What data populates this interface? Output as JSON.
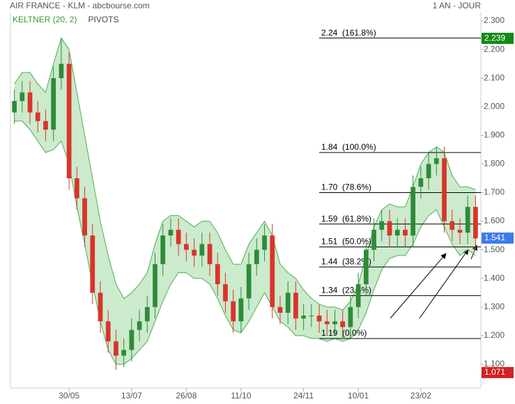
{
  "chart_data": {
    "type": "candlestick",
    "title": "AIR FRANCE - KLM - abcbourse.com",
    "period": "1 AN - JOUR",
    "indicators": [
      {
        "name": "KELTNER (20, 2)",
        "color": "#3a9a3a"
      },
      {
        "name": "PIVOTS",
        "color": "#444444"
      }
    ],
    "categories": [
      null,
      null,
      null,
      null,
      null,
      null,
      null,
      "30/05",
      null,
      null,
      null,
      null,
      null,
      null,
      null,
      "13/07",
      null,
      null,
      null,
      null,
      null,
      null,
      "26/08",
      null,
      null,
      null,
      null,
      null,
      null,
      "11/10",
      null,
      null,
      null,
      null,
      null,
      null,
      null,
      "24/11",
      null,
      null,
      null,
      null,
      null,
      null,
      "10/01",
      null,
      null,
      null,
      null,
      null,
      null,
      null,
      "23/02",
      null,
      null,
      null,
      null,
      null,
      null,
      null
    ],
    "open": [
      1.98,
      2.02,
      2.05,
      1.98,
      1.95,
      1.92,
      2.1,
      2.15,
      1.75,
      1.68,
      1.55,
      1.35,
      1.25,
      1.18,
      1.13,
      1.15,
      1.22,
      1.25,
      1.3,
      1.45,
      1.55,
      1.57,
      1.52,
      1.5,
      1.48,
      1.52,
      1.45,
      1.38,
      1.32,
      1.25,
      1.33,
      1.45,
      1.5,
      1.55,
      1.3,
      1.28,
      1.35,
      1.26,
      1.27,
      1.27,
      1.25,
      1.24,
      1.25,
      1.23,
      1.3,
      1.38,
      1.5,
      1.57,
      1.6,
      1.55,
      1.57,
      1.55,
      1.72,
      1.75,
      1.8,
      1.82,
      1.6,
      1.57,
      1.56,
      1.65
    ],
    "high": [
      2.06,
      2.09,
      2.09,
      2.02,
      1.99,
      2.14,
      2.24,
      2.19,
      1.79,
      1.72,
      1.59,
      1.39,
      1.29,
      1.22,
      1.19,
      1.26,
      1.29,
      1.34,
      1.49,
      1.59,
      1.61,
      1.61,
      1.56,
      1.54,
      1.56,
      1.56,
      1.49,
      1.42,
      1.36,
      1.37,
      1.49,
      1.54,
      1.59,
      1.59,
      1.34,
      1.39,
      1.39,
      1.31,
      1.31,
      1.31,
      1.29,
      1.29,
      1.29,
      1.34,
      1.42,
      1.54,
      1.61,
      1.64,
      1.64,
      1.61,
      1.61,
      1.76,
      1.79,
      1.84,
      1.86,
      1.86,
      1.64,
      1.61,
      1.69,
      1.69
    ],
    "low": [
      1.94,
      1.98,
      1.94,
      1.91,
      1.88,
      1.88,
      2.06,
      1.71,
      1.64,
      1.51,
      1.31,
      1.21,
      1.14,
      1.08,
      1.09,
      1.11,
      1.18,
      1.21,
      1.26,
      1.41,
      1.51,
      1.48,
      1.46,
      1.44,
      1.44,
      1.41,
      1.34,
      1.28,
      1.21,
      1.21,
      1.29,
      1.41,
      1.46,
      1.26,
      1.24,
      1.24,
      1.22,
      1.22,
      1.23,
      1.21,
      1.2,
      1.2,
      1.19,
      1.19,
      1.26,
      1.34,
      1.46,
      1.53,
      1.51,
      1.51,
      1.51,
      1.51,
      1.68,
      1.71,
      1.76,
      1.56,
      1.53,
      1.52,
      1.52,
      1.5
    ],
    "close": [
      2.02,
      2.05,
      1.98,
      1.95,
      1.92,
      2.1,
      2.15,
      1.75,
      1.68,
      1.55,
      1.35,
      1.25,
      1.18,
      1.13,
      1.15,
      1.22,
      1.25,
      1.3,
      1.45,
      1.55,
      1.57,
      1.52,
      1.5,
      1.48,
      1.52,
      1.45,
      1.38,
      1.32,
      1.25,
      1.33,
      1.45,
      1.5,
      1.55,
      1.3,
      1.28,
      1.35,
      1.26,
      1.27,
      1.27,
      1.25,
      1.24,
      1.25,
      1.23,
      1.3,
      1.38,
      1.5,
      1.57,
      1.6,
      1.55,
      1.57,
      1.55,
      1.72,
      1.75,
      1.8,
      1.82,
      1.6,
      1.57,
      1.56,
      1.65,
      1.54
    ],
    "up_color": "#2e8b3a",
    "down_color": "#d9342b",
    "keltner_upper": [
      2.08,
      2.12,
      2.12,
      2.08,
      2.05,
      2.15,
      2.24,
      2.2,
      2.05,
      1.9,
      1.75,
      1.6,
      1.48,
      1.38,
      1.33,
      1.35,
      1.38,
      1.42,
      1.52,
      1.6,
      1.62,
      1.62,
      1.6,
      1.58,
      1.6,
      1.6,
      1.56,
      1.5,
      1.45,
      1.45,
      1.52,
      1.56,
      1.6,
      1.55,
      1.45,
      1.42,
      1.4,
      1.36,
      1.33,
      1.31,
      1.3,
      1.3,
      1.29,
      1.32,
      1.38,
      1.48,
      1.58,
      1.64,
      1.66,
      1.65,
      1.65,
      1.72,
      1.8,
      1.84,
      1.86,
      1.84,
      1.76,
      1.72,
      1.72,
      1.71
    ],
    "keltner_lower": [
      1.95,
      1.95,
      1.92,
      1.88,
      1.84,
      1.85,
      1.88,
      1.8,
      1.65,
      1.52,
      1.38,
      1.25,
      1.15,
      1.1,
      1.1,
      1.12,
      1.15,
      1.18,
      1.25,
      1.32,
      1.38,
      1.42,
      1.42,
      1.4,
      1.4,
      1.38,
      1.33,
      1.27,
      1.22,
      1.21,
      1.25,
      1.3,
      1.35,
      1.3,
      1.25,
      1.23,
      1.2,
      1.2,
      1.19,
      1.19,
      1.18,
      1.19,
      1.18,
      1.19,
      1.22,
      1.28,
      1.36,
      1.43,
      1.47,
      1.48,
      1.48,
      1.52,
      1.58,
      1.62,
      1.64,
      1.58,
      1.52,
      1.48,
      1.5,
      1.48
    ],
    "fib_levels": [
      {
        "value": 2.24,
        "label": "2.24  (161.8%)"
      },
      {
        "value": 1.84,
        "label": "1.84  (100.0%)"
      },
      {
        "value": 1.7,
        "label": "1.70  (78.6%)"
      },
      {
        "value": 1.59,
        "label": "1.59  (61.8%)"
      },
      {
        "value": 1.51,
        "label": "1.51  (50.0%)"
      },
      {
        "value": 1.44,
        "label": "1.44  (38.2%)"
      },
      {
        "value": 1.34,
        "label": "1.34  (23.6%)"
      },
      {
        "value": 1.19,
        "label": "1.19  (0.0%)"
      }
    ],
    "markers": [
      {
        "value": 2.239,
        "color": "#138a13"
      },
      {
        "value": 1.541,
        "color": "#3a7bea"
      },
      {
        "value": 1.071,
        "color": "#d42020"
      }
    ],
    "ylim": [
      1.05,
      2.33
    ],
    "yticks": [
      {
        "value": 1.1,
        "label": "1.100"
      },
      {
        "value": 1.2,
        "label": "1.200"
      },
      {
        "value": 1.3,
        "label": "1.300"
      },
      {
        "value": 1.4,
        "label": "1.400"
      },
      {
        "value": 1.5,
        "label": "1.500"
      },
      {
        "value": 1.6,
        "label": "1.600"
      },
      {
        "value": 1.7,
        "label": "1.700"
      },
      {
        "value": 1.8,
        "label": "1.800"
      },
      {
        "value": 1.9,
        "label": "1.900"
      },
      {
        "value": 2.0,
        "label": "2.000"
      },
      {
        "value": 2.1,
        "label": "2.100"
      },
      {
        "value": 2.2,
        "label": "2.200"
      },
      {
        "value": 2.3,
        "label": "2.300"
      }
    ]
  }
}
